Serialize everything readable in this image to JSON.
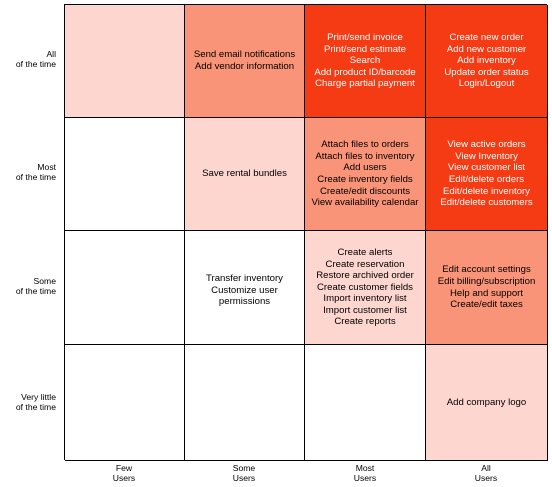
{
  "colors": {
    "white": "#ffffff",
    "lightest": "#fdd6cf",
    "light": "#fcc0b4",
    "medium": "#f99478",
    "dark": "#f43b14"
  },
  "row_labels": [
    {
      "line1": "All",
      "line2": "of the time"
    },
    {
      "line1": "Most",
      "line2": "of the time"
    },
    {
      "line1": "Some",
      "line2": "of the time"
    },
    {
      "line1": "Very little",
      "line2": "of the time"
    }
  ],
  "col_labels": [
    {
      "line1": "Few",
      "line2": "Users"
    },
    {
      "line1": "Some",
      "line2": "Users"
    },
    {
      "line1": "Most",
      "line2": "Users"
    },
    {
      "line1": "All",
      "line2": "Users"
    }
  ],
  "cells": [
    [
      {
        "shade": "lightest",
        "text_color": "#000000",
        "items": []
      },
      {
        "shade": "medium",
        "text_color": "#000000",
        "items": [
          "Send email notifications",
          "Add vendor information"
        ]
      },
      {
        "shade": "dark",
        "text_color": "#ffffff",
        "items": [
          "Print/send invoice",
          "Print/send estimate",
          "Search",
          "Add product ID/barcode",
          "Charge partial payment"
        ]
      },
      {
        "shade": "dark",
        "text_color": "#ffffff",
        "items": [
          "Create new order",
          "Add new customer",
          "Add inventory",
          "Update order status",
          "Login/Logout"
        ]
      }
    ],
    [
      {
        "shade": "white",
        "text_color": "#000000",
        "items": []
      },
      {
        "shade": "lightest",
        "text_color": "#000000",
        "items": [
          "Save rental bundles"
        ]
      },
      {
        "shade": "medium",
        "text_color": "#000000",
        "items": [
          "Attach files to orders",
          "Attach files to inventory",
          "Add users",
          "Create inventory fields",
          "Create/edit discounts",
          "View availability calendar"
        ]
      },
      {
        "shade": "dark",
        "text_color": "#ffffff",
        "items": [
          "View active orders",
          "View Inventory",
          "View customer list",
          "Edit/delete orders",
          "Edit/delete inventory",
          "Edit/delete customers"
        ]
      }
    ],
    [
      {
        "shade": "white",
        "text_color": "#000000",
        "items": []
      },
      {
        "shade": "white",
        "text_color": "#000000",
        "items": [
          "Transfer inventory",
          "Customize user permissions"
        ]
      },
      {
        "shade": "lightest",
        "text_color": "#000000",
        "items": [
          "Create alerts",
          "Create reservation",
          "Restore archived order",
          "Create customer fields",
          "Import inventory list",
          "Import customer list",
          "Create reports"
        ]
      },
      {
        "shade": "medium",
        "text_color": "#000000",
        "items": [
          "Edit account settings",
          "Edit billing/subscription",
          "Help and support",
          "Create/edit taxes"
        ]
      }
    ],
    [
      {
        "shade": "white",
        "text_color": "#000000",
        "items": []
      },
      {
        "shade": "white",
        "text_color": "#000000",
        "items": []
      },
      {
        "shade": "white",
        "text_color": "#000000",
        "items": []
      },
      {
        "shade": "lightest",
        "text_color": "#000000",
        "items": [
          "Add company logo"
        ]
      }
    ]
  ]
}
